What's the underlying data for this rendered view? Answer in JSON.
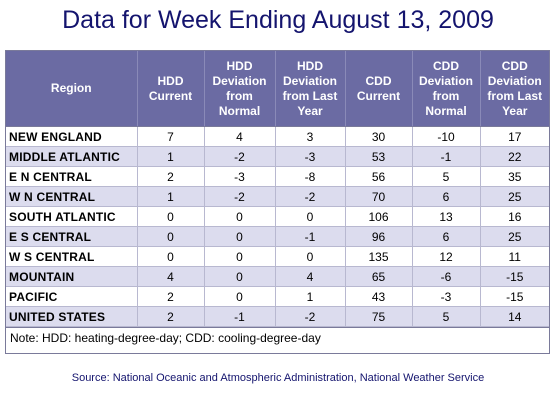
{
  "title": "Data for Week Ending August 13, 2009",
  "table": {
    "headers": [
      "Region",
      "HDD Current",
      "HDD Deviation from Normal",
      "HDD Deviation from Last Year",
      "CDD Current",
      "CDD Deviation from Normal",
      "CDD Deviation from Last Year"
    ],
    "rows": [
      [
        "NEW ENGLAND",
        "7",
        "4",
        "3",
        "30",
        "-10",
        "17"
      ],
      [
        "MIDDLE ATLANTIC",
        "1",
        "-2",
        "-3",
        "53",
        "-1",
        "22"
      ],
      [
        "E N CENTRAL",
        "2",
        "-3",
        "-8",
        "56",
        "5",
        "35"
      ],
      [
        "W N CENTRAL",
        "1",
        "-2",
        "-2",
        "70",
        "6",
        "25"
      ],
      [
        "SOUTH ATLANTIC",
        "0",
        "0",
        "0",
        "106",
        "13",
        "16"
      ],
      [
        "E S CENTRAL",
        "0",
        "0",
        "-1",
        "96",
        "6",
        "25"
      ],
      [
        "W S CENTRAL",
        "0",
        "0",
        "0",
        "135",
        "12",
        "11"
      ],
      [
        "MOUNTAIN",
        "4",
        "0",
        "4",
        "65",
        "-6",
        "-15"
      ],
      [
        "PACIFIC",
        "2",
        "0",
        "1",
        "43",
        "-3",
        "-15"
      ],
      [
        "UNITED STATES",
        "2",
        "-1",
        "-2",
        "75",
        "5",
        "14"
      ]
    ],
    "note": "Note: HDD: heating-degree-day; CDD: cooling-degree-day"
  },
  "source": "Source:  National Oceanic and Atmospheric Administration, National Weather Service",
  "colors": {
    "title": "#14146e",
    "header_bg": "#6b6ba3",
    "row_alt_bg": "#dcdcee"
  }
}
